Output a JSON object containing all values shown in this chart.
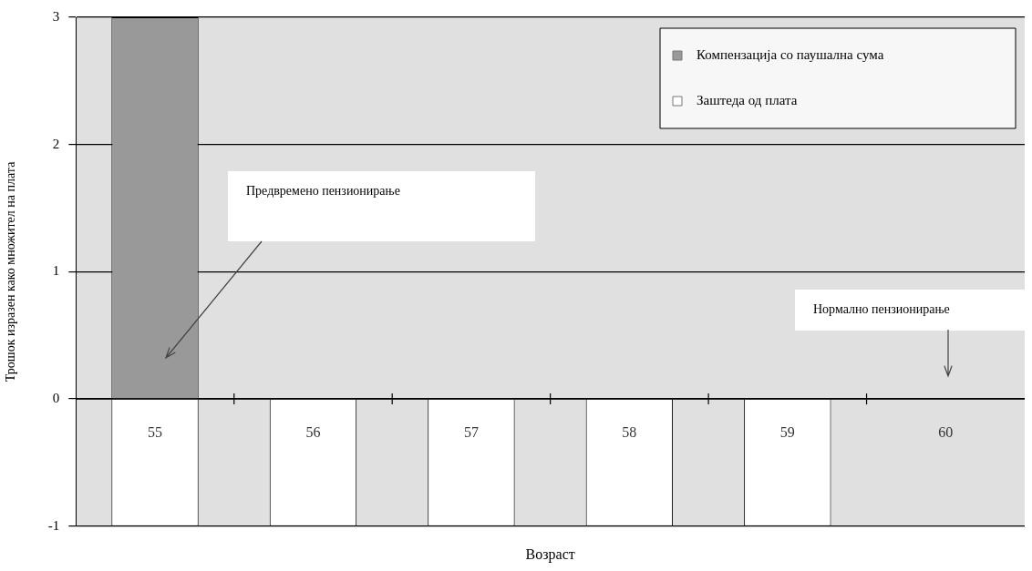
{
  "chart_data": {
    "type": "bar",
    "stacked": true,
    "xlabel": "Возраст",
    "ylabel": "Трошок изразен како множител на плата",
    "categories": [
      "55",
      "56",
      "57",
      "58",
      "59",
      "60"
    ],
    "series": [
      {
        "name": "Компензација со паушална сума",
        "color": "#999999",
        "values": [
          3,
          null,
          null,
          null,
          null,
          null
        ]
      },
      {
        "name": "Заштеда од плата",
        "color": "#ffffff",
        "values": [
          -1,
          -1,
          -1,
          -1,
          -1,
          null
        ]
      }
    ],
    "ylim": [
      -1,
      3
    ],
    "yticks": [
      -1,
      0,
      1,
      2,
      3
    ],
    "grid": "y",
    "legend": "top right",
    "annotations": [
      "Предвремено пензионирање",
      "Нормално пензионирање"
    ]
  }
}
